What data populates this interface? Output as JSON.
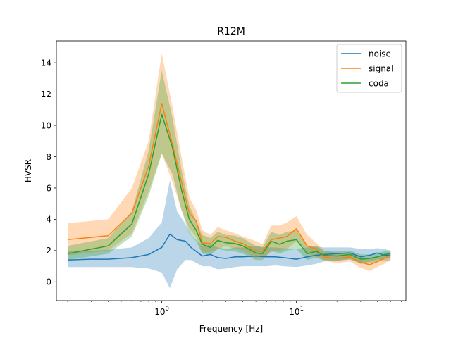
{
  "chart_data": {
    "type": "line",
    "title": "R12M",
    "xlabel": "Frequency [Hz]",
    "ylabel": "HVSR",
    "xscale": "log",
    "xlim": [
      0.165,
      65
    ],
    "ylim": [
      -1.2,
      15.4
    ],
    "yticks": [
      0,
      2,
      4,
      6,
      8,
      10,
      12,
      14
    ],
    "xticks": [
      {
        "value": 1,
        "base": "10",
        "exp": "0"
      },
      {
        "value": 10,
        "base": "10",
        "exp": "1"
      }
    ],
    "grid": false,
    "legend_position": "top-right",
    "series": [
      {
        "name": "noise",
        "color": "#1f77b4",
        "x": [
          0.2,
          0.3,
          0.4,
          0.6,
          0.8,
          1.0,
          1.15,
          1.3,
          1.5,
          1.65,
          2.0,
          2.3,
          2.6,
          3.0,
          3.5,
          4.0,
          5.0,
          6.0,
          7.0,
          8.0,
          10.0,
          12.0,
          14.0,
          16.0,
          20.0,
          25.0,
          30.0,
          35.0,
          40.0,
          45.0,
          50.0
        ],
        "y": [
          1.4,
          1.45,
          1.45,
          1.55,
          1.75,
          2.2,
          3.05,
          2.7,
          2.6,
          2.2,
          1.65,
          1.75,
          1.55,
          1.5,
          1.6,
          1.6,
          1.65,
          1.6,
          1.6,
          1.55,
          1.45,
          1.6,
          1.7,
          1.75,
          1.8,
          1.85,
          1.6,
          1.7,
          1.85,
          1.7,
          1.7
        ],
        "upper": [
          2.0,
          2.0,
          2.05,
          2.2,
          2.8,
          3.8,
          6.5,
          4.5,
          3.7,
          3.0,
          2.3,
          2.4,
          2.2,
          2.1,
          2.2,
          2.2,
          2.3,
          2.2,
          2.2,
          2.15,
          2.1,
          2.2,
          2.25,
          2.2,
          2.2,
          2.2,
          2.1,
          2.1,
          2.15,
          2.1,
          2.0
        ],
        "lower": [
          0.95,
          0.95,
          0.95,
          0.95,
          0.85,
          0.6,
          -0.4,
          0.8,
          1.4,
          1.4,
          1.0,
          1.0,
          0.8,
          0.85,
          0.95,
          1.0,
          1.0,
          1.0,
          1.05,
          1.0,
          0.95,
          1.05,
          1.15,
          1.3,
          1.35,
          1.45,
          1.2,
          1.3,
          1.45,
          1.35,
          1.35
        ]
      },
      {
        "name": "signal",
        "color": "#ff7f0e",
        "x": [
          0.2,
          0.4,
          0.6,
          0.8,
          1.0,
          1.2,
          1.4,
          1.6,
          1.8,
          2.0,
          2.3,
          2.6,
          3.0,
          3.5,
          4.0,
          5.0,
          5.6,
          6.5,
          7.5,
          8.5,
          10.0,
          12.0,
          14.0,
          16.0,
          20.0,
          25.0,
          30.0,
          35.0,
          40.0,
          45.0,
          50.0
        ],
        "y": [
          2.7,
          2.95,
          4.4,
          7.4,
          11.4,
          8.8,
          6.4,
          4.4,
          3.9,
          2.5,
          2.45,
          2.9,
          2.85,
          2.6,
          2.45,
          2.0,
          1.95,
          2.7,
          2.8,
          2.9,
          3.4,
          2.3,
          2.1,
          1.6,
          1.5,
          1.6,
          1.25,
          1.1,
          1.3,
          1.5,
          1.7
        ],
        "upper": [
          3.75,
          4.0,
          6.0,
          9.0,
          14.6,
          11.2,
          8.0,
          5.4,
          4.6,
          3.3,
          3.0,
          3.5,
          3.3,
          3.1,
          2.9,
          2.6,
          2.4,
          3.6,
          3.6,
          3.8,
          4.2,
          3.0,
          2.5,
          2.0,
          1.85,
          1.9,
          1.6,
          1.5,
          1.6,
          1.8,
          1.9
        ],
        "lower": [
          1.7,
          2.0,
          3.1,
          5.8,
          8.2,
          6.4,
          4.6,
          3.4,
          2.9,
          1.9,
          1.9,
          2.1,
          2.3,
          2.1,
          2.0,
          1.5,
          1.5,
          1.9,
          2.0,
          2.1,
          2.6,
          1.8,
          1.6,
          1.35,
          1.2,
          1.3,
          0.9,
          0.7,
          0.95,
          1.15,
          1.45
        ]
      },
      {
        "name": "coda",
        "color": "#2ca02c",
        "x": [
          0.2,
          0.4,
          0.6,
          0.8,
          1.0,
          1.2,
          1.4,
          1.6,
          1.8,
          2.0,
          2.3,
          2.6,
          3.0,
          3.5,
          4.0,
          5.0,
          5.6,
          6.5,
          7.5,
          8.5,
          10.0,
          12.0,
          14.0,
          16.0,
          20.0,
          25.0,
          30.0,
          35.0,
          40.0,
          45.0,
          50.0
        ],
        "y": [
          1.8,
          2.3,
          3.7,
          6.9,
          10.7,
          8.6,
          5.9,
          4.0,
          3.3,
          2.4,
          2.2,
          2.65,
          2.5,
          2.45,
          2.3,
          1.85,
          1.8,
          2.6,
          2.4,
          2.6,
          2.7,
          1.8,
          1.95,
          1.7,
          1.65,
          1.75,
          1.45,
          1.5,
          1.6,
          1.75,
          1.8
        ],
        "upper": [
          2.3,
          2.8,
          4.5,
          8.4,
          13.5,
          10.5,
          7.2,
          4.9,
          3.9,
          3.0,
          2.8,
          3.2,
          3.0,
          2.95,
          2.8,
          2.3,
          2.2,
          3.2,
          3.0,
          3.2,
          3.3,
          2.3,
          2.3,
          2.0,
          1.95,
          2.0,
          1.75,
          1.75,
          1.85,
          1.95,
          2.0
        ],
        "lower": [
          1.4,
          1.8,
          2.9,
          5.5,
          8.2,
          6.9,
          4.6,
          3.1,
          2.6,
          1.8,
          1.7,
          2.1,
          2.0,
          1.95,
          1.8,
          1.4,
          1.4,
          2.0,
          1.8,
          2.0,
          2.1,
          1.4,
          1.55,
          1.4,
          1.35,
          1.45,
          1.15,
          1.2,
          1.3,
          1.5,
          1.55
        ]
      }
    ]
  }
}
